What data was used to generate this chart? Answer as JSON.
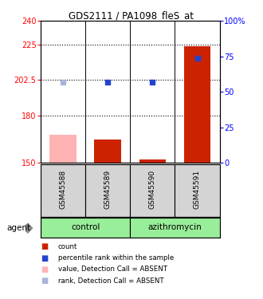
{
  "title": "GDS2111 / PA1098_fleS_at",
  "samples": [
    "GSM45588",
    "GSM45589",
    "GSM45590",
    "GSM45591"
  ],
  "bar_values": [
    168,
    165,
    152,
    224
  ],
  "bar_colors": [
    "#ffb3b3",
    "#cc2200",
    "#cc2200",
    "#cc2200"
  ],
  "dot_values": [
    57,
    57,
    57,
    74
  ],
  "dot_colors": [
    "#aab4d8",
    "#2244cc",
    "#2244cc",
    "#2244cc"
  ],
  "dot_absent": [
    true,
    false,
    false,
    false
  ],
  "ylim_left": [
    150,
    240
  ],
  "ylim_right": [
    0,
    100
  ],
  "yticks_left": [
    150,
    180,
    202.5,
    225,
    240
  ],
  "ytick_labels_left": [
    "150",
    "180",
    "202.5",
    "225",
    "240"
  ],
  "yticks_right": [
    0,
    25,
    50,
    75,
    100
  ],
  "ytick_labels_right": [
    "0",
    "25",
    "50",
    "75",
    "100%"
  ],
  "hlines": [
    225,
    202.5,
    180
  ],
  "legend_items": [
    {
      "label": "count",
      "color": "#cc2200"
    },
    {
      "label": "percentile rank within the sample",
      "color": "#2244cc"
    },
    {
      "label": "value, Detection Call = ABSENT",
      "color": "#ffb3b3"
    },
    {
      "label": "rank, Detection Call = ABSENT",
      "color": "#aab4d8"
    }
  ],
  "bar_width": 0.6,
  "group_color": "#99ee99"
}
